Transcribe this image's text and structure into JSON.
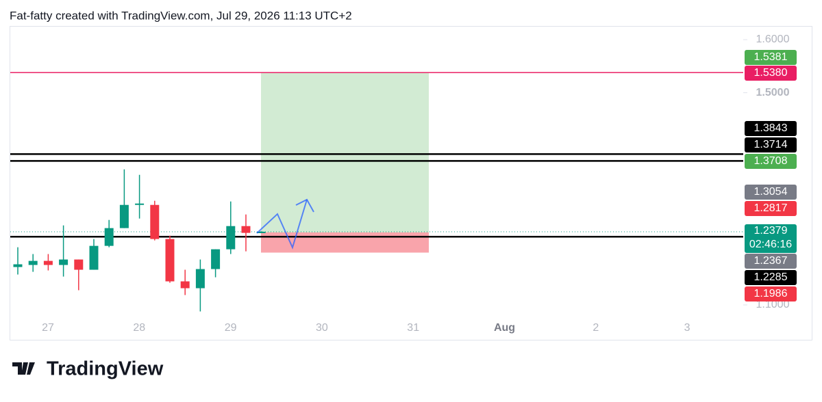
{
  "header": "Fat-fatty created with TradingView.com, Jul 29, 2026 11:13 UTC+2",
  "logo": "TradingView",
  "chart_data": {
    "type": "candlestick",
    "open": [
      1.1714,
      1.1753,
      1.183,
      1.1753,
      1.1856,
      1.1663,
      1.2113,
      1.2448,
      1.2885,
      1.2885,
      1.2242,
      1.1444,
      1.1315,
      1.1676,
      1.2049,
      1.2486,
      1.2371
    ],
    "high": [
      1.2087,
      1.1959,
      1.1959,
      1.2499,
      1.1856,
      1.2242,
      1.2602,
      1.3555,
      1.3452,
      1.2963,
      1.2306,
      1.1663,
      1.1856,
      1.2049,
      1.295,
      1.2705,
      1.239
    ],
    "low": [
      1.1573,
      1.1624,
      1.165,
      1.1534,
      1.1277,
      1.1663,
      1.2087,
      1.2448,
      1.2628,
      1.2216,
      1.1418,
      1.1186,
      1.0877,
      1.1521,
      1.1959,
      1.201,
      1.236
    ],
    "close": [
      1.1766,
      1.183,
      1.1753,
      1.1856,
      1.1663,
      1.2113,
      1.2448,
      1.2885,
      1.2911,
      1.2242,
      1.1444,
      1.1315,
      1.1676,
      1.2049,
      1.2486,
      1.2358,
      1.2379
    ],
    "up_color": "#089981",
    "down_color": "#f23645",
    "ylim": [
      1.1,
      1.6
    ],
    "yticks": [
      {
        "value": 1.1,
        "label": "1.1000"
      },
      {
        "value": 1.5,
        "label": "1.5000"
      },
      {
        "value": 1.6,
        "label": "1.6000"
      }
    ],
    "xticks": [
      "27",
      "28",
      "29",
      "30",
      "31",
      "Aug",
      "2",
      "3"
    ],
    "lines": [
      {
        "value": 1.538,
        "color": "#e91e63"
      },
      {
        "value": 1.3843,
        "color": "#000000"
      },
      {
        "value": 1.3714,
        "color": "#000000"
      },
      {
        "value": 1.2285,
        "color": "#000000"
      }
    ],
    "position": {
      "target": 1.5381,
      "entry": 1.2367,
      "stop": 1.1986
    },
    "price_labels": [
      {
        "text": "1.5381",
        "color": "#4caf50"
      },
      {
        "text": "1.5380",
        "color": "#e91e63"
      },
      {
        "text": "1.3843",
        "color": "#000000"
      },
      {
        "text": "1.3714",
        "color": "#000000"
      },
      {
        "text": "1.3708",
        "color": "#4caf50"
      },
      {
        "text": "1.3054",
        "color": "#787b86"
      },
      {
        "text": "1.2817",
        "color": "#f23645"
      },
      {
        "text": "1.2379",
        "color": "#089981",
        "countdown": "02:46:16"
      },
      {
        "text": "1.2367",
        "color": "#787b86"
      },
      {
        "text": "1.2285",
        "color": "#000000"
      },
      {
        "text": "1.1986",
        "color": "#f23645"
      }
    ]
  }
}
